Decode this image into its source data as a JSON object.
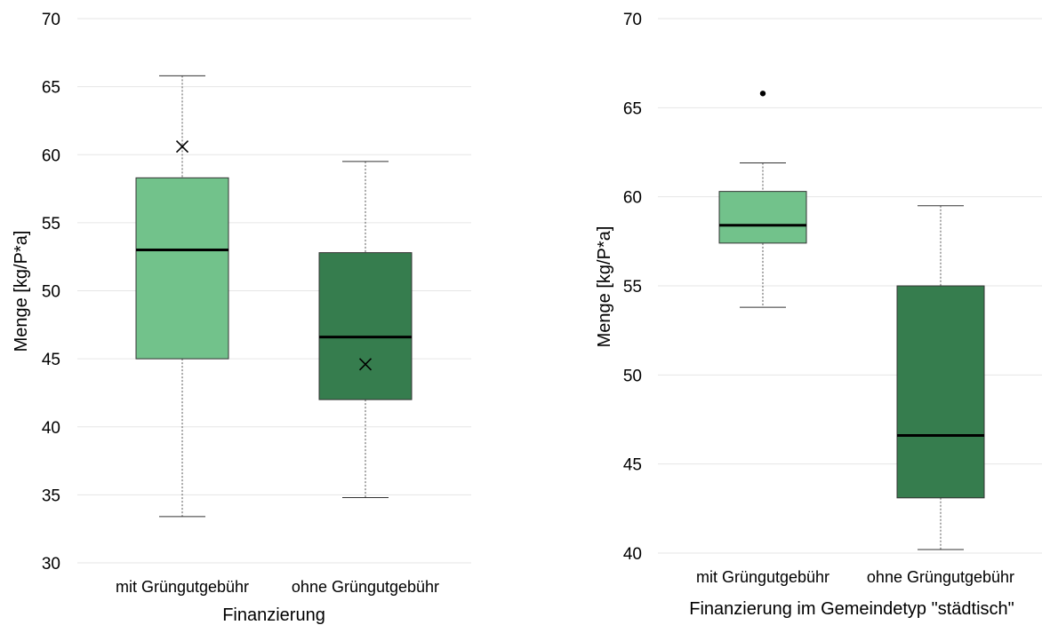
{
  "chart_data": [
    {
      "type": "box",
      "xlabel": "Finanzierung",
      "ylabel": "Menge [kg/P*a]",
      "ylim": [
        30,
        70
      ],
      "yticks": [
        "30",
        "35",
        "40",
        "45",
        "50",
        "55",
        "60",
        "65",
        "70"
      ],
      "grid": true,
      "categories": [
        "mit Grüngutgebühr",
        "ohne Grüngutgebühr"
      ],
      "boxes": [
        {
          "whisker_low": 33.4,
          "q1": 45.0,
          "median": 53.0,
          "q3": 58.3,
          "whisker_high": 65.8,
          "mean": 60.6,
          "outliers": [],
          "color": "#72c28b"
        },
        {
          "whisker_low": 34.8,
          "q1": 42.0,
          "median": 46.6,
          "q3": 52.8,
          "whisker_high": 59.5,
          "mean": 44.6,
          "outliers": [],
          "color": "#367d4e"
        }
      ]
    },
    {
      "type": "box",
      "xlabel": "Finanzierung im Gemeindetyp \"städtisch\"",
      "ylabel": "Menge [kg/P*a]",
      "ylim": [
        40,
        70
      ],
      "yticks": [
        "40",
        "45",
        "50",
        "55",
        "60",
        "65",
        "70"
      ],
      "grid": true,
      "categories": [
        "mit Grüngutgebühr",
        "ohne Grüngutgebühr"
      ],
      "boxes": [
        {
          "whisker_low": 53.8,
          "q1": 57.4,
          "median": 58.4,
          "q3": 60.3,
          "whisker_high": 61.9,
          "mean": null,
          "outliers": [
            65.8
          ],
          "color": "#72c28b"
        },
        {
          "whisker_low": 40.2,
          "q1": 43.1,
          "median": 46.6,
          "q3": 55.0,
          "whisker_high": 59.5,
          "mean": null,
          "outliers": [],
          "color": "#367d4e"
        }
      ]
    }
  ]
}
